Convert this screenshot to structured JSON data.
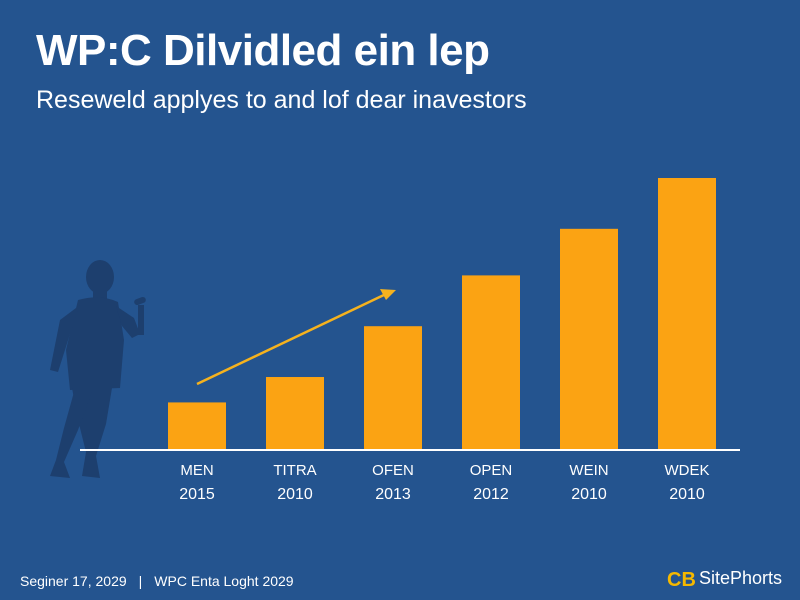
{
  "header": {
    "title": "WP:C Dilvidled ein lep",
    "subtitle": "Reseweld applyes to and lof dear inavestors"
  },
  "footer": {
    "date": "Seginer 17, 2029",
    "separator": "|",
    "caption": "WPC Enta Loght 2029"
  },
  "brand": {
    "logo_text": "CB",
    "name": "SitePhorts",
    "logo_color": "#f5b800"
  },
  "illustration": {
    "icon": "speaker-silhouette-with-microphone-icon",
    "color": "#1d3f6e"
  },
  "colors": {
    "background": "#24548f",
    "bar": "#fba313",
    "trend_arrow": "#f5b21e",
    "baseline": "#ffffff"
  },
  "chart_data": {
    "type": "bar",
    "categories": [
      "MEN",
      "TITRA",
      "OFEN",
      "OPEN",
      "WEIN",
      "WDEK"
    ],
    "years": [
      "2015",
      "2010",
      "2013",
      "2012",
      "2010",
      "2010"
    ],
    "values": [
      11,
      17,
      29,
      41,
      52,
      64
    ],
    "title": "WP:C Dilvidled ein lep",
    "subtitle": "Reseweld applyes to and lof dear inavestors",
    "xlabel": "",
    "ylabel": "",
    "ylim": [
      0,
      64
    ],
    "grid": false,
    "legend": "none",
    "trend_arrow": {
      "from_category": "MEN",
      "to_category": "OPEN"
    }
  }
}
